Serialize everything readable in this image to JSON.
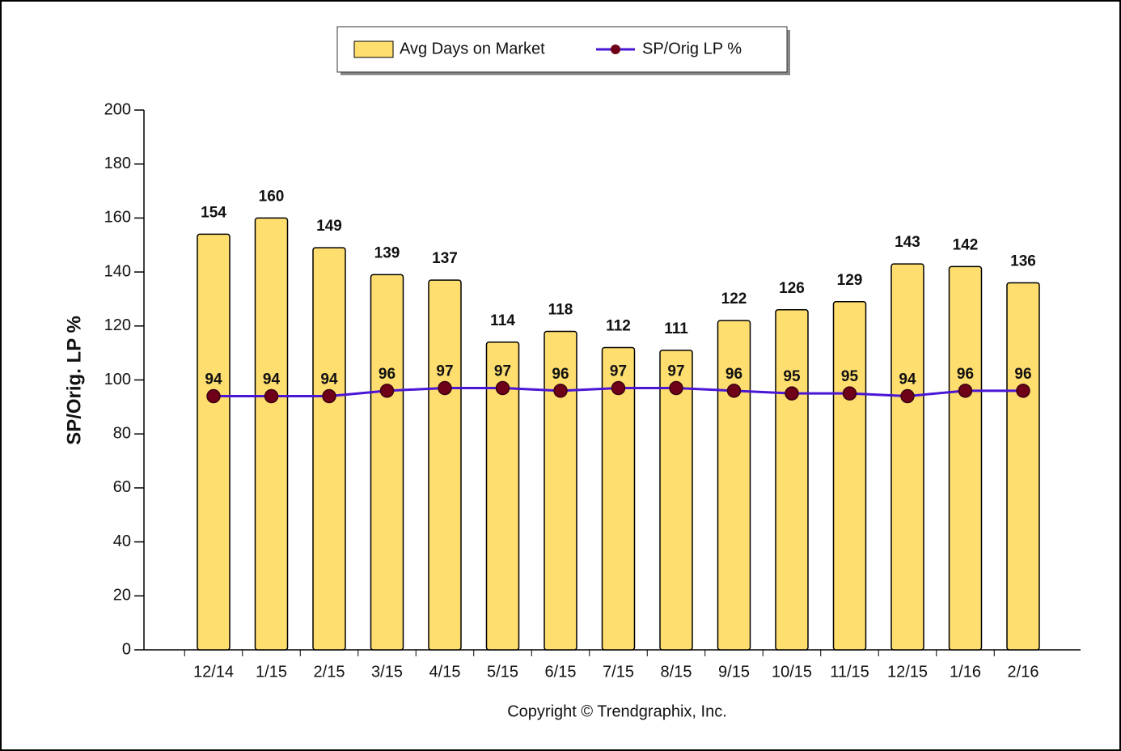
{
  "chart_data": {
    "type": "bar-line",
    "categories": [
      "12/14",
      "1/15",
      "2/15",
      "3/15",
      "4/15",
      "5/15",
      "6/15",
      "7/15",
      "8/15",
      "9/15",
      "10/15",
      "11/15",
      "12/15",
      "1/16",
      "2/16"
    ],
    "series": [
      {
        "name": "Avg Days on Market",
        "type": "bar",
        "color": "#ffde70",
        "values": [
          154,
          160,
          149,
          139,
          137,
          114,
          118,
          112,
          111,
          122,
          126,
          129,
          143,
          142,
          136
        ]
      },
      {
        "name": "SP/Orig LP %",
        "type": "line",
        "color": "#4a16d6",
        "marker_color": "#6e0018",
        "values": [
          94,
          94,
          94,
          96,
          97,
          97,
          96,
          97,
          97,
          96,
          95,
          95,
          94,
          96,
          96
        ]
      }
    ],
    "y_label": "SP/Orig. LP %",
    "caption": "Copyright © Trendgraphix, Inc.",
    "ylim": [
      0,
      200
    ],
    "yticks": [
      0,
      20,
      40,
      60,
      80,
      100,
      120,
      140,
      160,
      180,
      200
    ],
    "legend": "top"
  }
}
